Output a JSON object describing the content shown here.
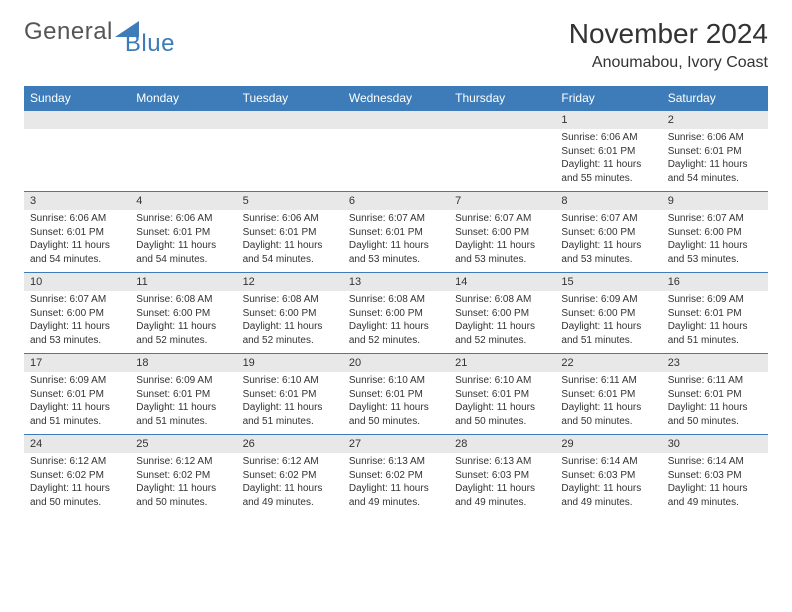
{
  "logo": {
    "text1": "General",
    "text2": "Blue"
  },
  "title": "November 2024",
  "location": "Anoumabou, Ivory Coast",
  "colors": {
    "header_bg": "#3d7cb8",
    "header_text": "#ffffff",
    "daynum_bg": "#e8e8e8",
    "text": "#333333",
    "border": "#3d7cb8"
  },
  "weekdays": [
    "Sunday",
    "Monday",
    "Tuesday",
    "Wednesday",
    "Thursday",
    "Friday",
    "Saturday"
  ],
  "weeks": [
    [
      {
        "n": "",
        "lines": []
      },
      {
        "n": "",
        "lines": []
      },
      {
        "n": "",
        "lines": []
      },
      {
        "n": "",
        "lines": []
      },
      {
        "n": "",
        "lines": []
      },
      {
        "n": "1",
        "lines": [
          "Sunrise: 6:06 AM",
          "Sunset: 6:01 PM",
          "Daylight: 11 hours and 55 minutes."
        ]
      },
      {
        "n": "2",
        "lines": [
          "Sunrise: 6:06 AM",
          "Sunset: 6:01 PM",
          "Daylight: 11 hours and 54 minutes."
        ]
      }
    ],
    [
      {
        "n": "3",
        "lines": [
          "Sunrise: 6:06 AM",
          "Sunset: 6:01 PM",
          "Daylight: 11 hours and 54 minutes."
        ]
      },
      {
        "n": "4",
        "lines": [
          "Sunrise: 6:06 AM",
          "Sunset: 6:01 PM",
          "Daylight: 11 hours and 54 minutes."
        ]
      },
      {
        "n": "5",
        "lines": [
          "Sunrise: 6:06 AM",
          "Sunset: 6:01 PM",
          "Daylight: 11 hours and 54 minutes."
        ]
      },
      {
        "n": "6",
        "lines": [
          "Sunrise: 6:07 AM",
          "Sunset: 6:01 PM",
          "Daylight: 11 hours and 53 minutes."
        ]
      },
      {
        "n": "7",
        "lines": [
          "Sunrise: 6:07 AM",
          "Sunset: 6:00 PM",
          "Daylight: 11 hours and 53 minutes."
        ]
      },
      {
        "n": "8",
        "lines": [
          "Sunrise: 6:07 AM",
          "Sunset: 6:00 PM",
          "Daylight: 11 hours and 53 minutes."
        ]
      },
      {
        "n": "9",
        "lines": [
          "Sunrise: 6:07 AM",
          "Sunset: 6:00 PM",
          "Daylight: 11 hours and 53 minutes."
        ]
      }
    ],
    [
      {
        "n": "10",
        "lines": [
          "Sunrise: 6:07 AM",
          "Sunset: 6:00 PM",
          "Daylight: 11 hours and 53 minutes."
        ]
      },
      {
        "n": "11",
        "lines": [
          "Sunrise: 6:08 AM",
          "Sunset: 6:00 PM",
          "Daylight: 11 hours and 52 minutes."
        ]
      },
      {
        "n": "12",
        "lines": [
          "Sunrise: 6:08 AM",
          "Sunset: 6:00 PM",
          "Daylight: 11 hours and 52 minutes."
        ]
      },
      {
        "n": "13",
        "lines": [
          "Sunrise: 6:08 AM",
          "Sunset: 6:00 PM",
          "Daylight: 11 hours and 52 minutes."
        ]
      },
      {
        "n": "14",
        "lines": [
          "Sunrise: 6:08 AM",
          "Sunset: 6:00 PM",
          "Daylight: 11 hours and 52 minutes."
        ]
      },
      {
        "n": "15",
        "lines": [
          "Sunrise: 6:09 AM",
          "Sunset: 6:00 PM",
          "Daylight: 11 hours and 51 minutes."
        ]
      },
      {
        "n": "16",
        "lines": [
          "Sunrise: 6:09 AM",
          "Sunset: 6:01 PM",
          "Daylight: 11 hours and 51 minutes."
        ]
      }
    ],
    [
      {
        "n": "17",
        "lines": [
          "Sunrise: 6:09 AM",
          "Sunset: 6:01 PM",
          "Daylight: 11 hours and 51 minutes."
        ]
      },
      {
        "n": "18",
        "lines": [
          "Sunrise: 6:09 AM",
          "Sunset: 6:01 PM",
          "Daylight: 11 hours and 51 minutes."
        ]
      },
      {
        "n": "19",
        "lines": [
          "Sunrise: 6:10 AM",
          "Sunset: 6:01 PM",
          "Daylight: 11 hours and 51 minutes."
        ]
      },
      {
        "n": "20",
        "lines": [
          "Sunrise: 6:10 AM",
          "Sunset: 6:01 PM",
          "Daylight: 11 hours and 50 minutes."
        ]
      },
      {
        "n": "21",
        "lines": [
          "Sunrise: 6:10 AM",
          "Sunset: 6:01 PM",
          "Daylight: 11 hours and 50 minutes."
        ]
      },
      {
        "n": "22",
        "lines": [
          "Sunrise: 6:11 AM",
          "Sunset: 6:01 PM",
          "Daylight: 11 hours and 50 minutes."
        ]
      },
      {
        "n": "23",
        "lines": [
          "Sunrise: 6:11 AM",
          "Sunset: 6:01 PM",
          "Daylight: 11 hours and 50 minutes."
        ]
      }
    ],
    [
      {
        "n": "24",
        "lines": [
          "Sunrise: 6:12 AM",
          "Sunset: 6:02 PM",
          "Daylight: 11 hours and 50 minutes."
        ]
      },
      {
        "n": "25",
        "lines": [
          "Sunrise: 6:12 AM",
          "Sunset: 6:02 PM",
          "Daylight: 11 hours and 50 minutes."
        ]
      },
      {
        "n": "26",
        "lines": [
          "Sunrise: 6:12 AM",
          "Sunset: 6:02 PM",
          "Daylight: 11 hours and 49 minutes."
        ]
      },
      {
        "n": "27",
        "lines": [
          "Sunrise: 6:13 AM",
          "Sunset: 6:02 PM",
          "Daylight: 11 hours and 49 minutes."
        ]
      },
      {
        "n": "28",
        "lines": [
          "Sunrise: 6:13 AM",
          "Sunset: 6:03 PM",
          "Daylight: 11 hours and 49 minutes."
        ]
      },
      {
        "n": "29",
        "lines": [
          "Sunrise: 6:14 AM",
          "Sunset: 6:03 PM",
          "Daylight: 11 hours and 49 minutes."
        ]
      },
      {
        "n": "30",
        "lines": [
          "Sunrise: 6:14 AM",
          "Sunset: 6:03 PM",
          "Daylight: 11 hours and 49 minutes."
        ]
      }
    ]
  ]
}
